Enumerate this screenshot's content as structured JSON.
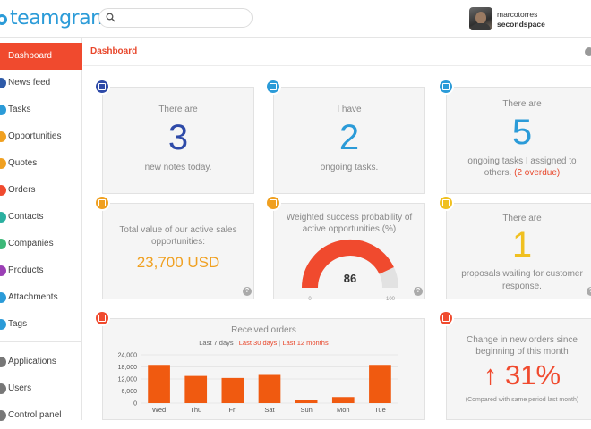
{
  "header": {
    "logo_text": "teamgram",
    "search": {
      "placeholder": "",
      "icon": "search-icon"
    },
    "user": {
      "name": "marcotorres",
      "company": "secondspace"
    }
  },
  "sidebar": {
    "items": [
      {
        "label": "Dashboard",
        "active": true,
        "color": "#f04a2e"
      },
      {
        "label": "News feed",
        "color": "#2e5aa8"
      },
      {
        "label": "Tasks",
        "color": "#2b9bd8"
      },
      {
        "label": "Opportunities",
        "color": "#f0a020"
      },
      {
        "label": "Quotes",
        "color": "#f0a020"
      },
      {
        "label": "Orders",
        "color": "#f04a2e"
      },
      {
        "label": "Contacts",
        "color": "#2bb0a0"
      },
      {
        "label": "Companies",
        "color": "#3cb878"
      },
      {
        "label": "Products",
        "color": "#9b3fb5"
      },
      {
        "label": "Attachments",
        "color": "#2b9bd8"
      },
      {
        "label": "Tags",
        "color": "#2b9bd8"
      },
      {
        "label": "Applications",
        "color": "#777777"
      },
      {
        "label": "Users",
        "color": "#777777"
      },
      {
        "label": "Control panel",
        "color": "#777777"
      }
    ]
  },
  "breadcrumb": {
    "title": "Dashboard"
  },
  "cards": {
    "notes": {
      "line1": "There are",
      "number": "3",
      "line2": "new notes today.",
      "color": "#2e4aa8"
    },
    "tasks": {
      "line1": "I have",
      "number": "2",
      "line2": "ongoing tasks.",
      "color": "#2b9bd8"
    },
    "assigned": {
      "line1": "There are",
      "number": "5",
      "line2": "ongoing tasks I assigned to",
      "line3": "others.",
      "overdue": "(2 overdue)",
      "color": "#2b9bd8"
    },
    "value": {
      "line1": "Total value of our active sales",
      "line2": "opportunities:",
      "amount": "23,700 USD",
      "color": "#f0a020"
    },
    "probability": {
      "line1": "Weighted success probability of",
      "line2": "active opportunities (%)",
      "value": 86,
      "min_label": "0",
      "max_label": "100",
      "color": "#f04a2e"
    },
    "proposals": {
      "line1": "There are",
      "number": "1",
      "line2": "proposals waiting for customer",
      "line3": "response.",
      "color": "#f0c020"
    },
    "orders": {
      "title": "Received orders",
      "filters": [
        "Last 7 days",
        "Last 30 days",
        "Last 12 months"
      ],
      "separator": "|"
    },
    "change": {
      "line1": "Change in new orders since",
      "line2": "beginning of this month",
      "arrow": "↑",
      "percent": "31%",
      "note": "(Compared with same period last month)",
      "color": "#f04a2e"
    }
  },
  "chart_data": {
    "type": "bar",
    "title": "Received orders",
    "categories": [
      "Wed",
      "Thu",
      "Fri",
      "Sat",
      "Sun",
      "Mon",
      "Tue"
    ],
    "values": [
      19000,
      13500,
      12500,
      14000,
      1500,
      3000,
      19000
    ],
    "yticks": [
      "24,000",
      "18,000",
      "12,000",
      "6,000",
      "0"
    ],
    "ylim": [
      0,
      24000
    ],
    "bar_color": "#f05a10",
    "grid": true
  }
}
